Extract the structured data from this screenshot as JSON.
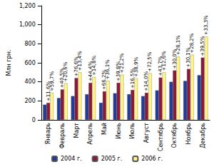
{
  "chart_data": {
    "type": "bar",
    "y_label": "Млн грн.",
    "categories": [
      "Январь",
      "Февраль",
      "Март",
      "Апрель",
      "Май",
      "Июнь",
      "Июль",
      "Август",
      "Сентябрь",
      "Октябрь",
      "Ноябрь",
      "Декабрь"
    ],
    "series": [
      {
        "name": "2004 г.",
        "color": "#1f3d99",
        "values": [
          160,
          230,
          250,
          270,
          180,
          280,
          270,
          250,
          310,
          400,
          410,
          470
        ]
      },
      {
        "name": "2005 г.",
        "color": "#8b1a3a",
        "values": [
          180,
          320,
          440,
          390,
          300,
          390,
          315,
          285,
          445,
          520,
          535,
          655
        ],
        "annotations": [
          "+11,6%",
          "+40,5%",
          "+76,6%",
          "+44,4%",
          "+66,2%",
          "+39,8%",
          "+16,5%",
          "+14,0%",
          "+43,7%",
          "+30,0%",
          "+30,1%",
          "+39,5%"
        ]
      },
      {
        "name": "2006 г.",
        "color": "#fff38a",
        "values": [
          285,
          385,
          500,
          450,
          410,
          475,
          435,
          490,
          500,
          665,
          685,
          875
        ],
        "annotations": [
          "+59,7%",
          "+20,6%",
          "+13,4%",
          "+14,8%",
          "+36,1%",
          "+21,2%",
          "+38,9%",
          "+72,5%",
          "+12,6%",
          "+28,1%",
          "+28,2%",
          "+33,3%"
        ]
      }
    ],
    "ylim": [
      0,
      1200
    ],
    "yticks": [
      0,
      200,
      400,
      600,
      800,
      1000,
      1200
    ],
    "grid": false,
    "legend": "bottom"
  }
}
